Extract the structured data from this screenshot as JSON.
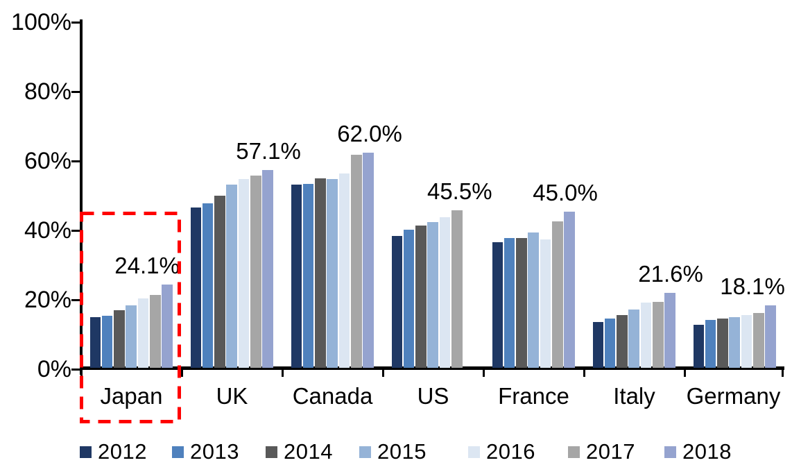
{
  "chart_data": {
    "type": "bar",
    "title": "",
    "xlabel": "",
    "ylabel": "",
    "ylim": [
      0,
      100
    ],
    "y_tick_labels": [
      "0%",
      "20%",
      "40%",
      "60%",
      "80%",
      "100%"
    ],
    "grid": false,
    "legend_position": "bottom",
    "series_years": [
      "2012",
      "2013",
      "2014",
      "2015",
      "2016",
      "2017",
      "2018"
    ],
    "series_colors": [
      "#1F3864",
      "#4F81BD",
      "#595959",
      "#95B3D7",
      "#DCE6F2",
      "#A6A6A6",
      "#95A3CF"
    ],
    "categories": [
      "Japan",
      "UK",
      "Canada",
      "US",
      "France",
      "Italy",
      "Germany"
    ],
    "groups": [
      {
        "country": "Japan",
        "values": [
          14.7,
          15.0,
          16.7,
          18.1,
          20.0,
          21.0,
          24.1
        ],
        "callout_label": "24.1%",
        "highlighted": true
      },
      {
        "country": "UK",
        "values": [
          46.2,
          47.5,
          49.7,
          52.9,
          54.5,
          55.5,
          57.1
        ],
        "callout_label": "57.1%",
        "highlighted": false
      },
      {
        "country": "Canada",
        "values": [
          52.8,
          53.1,
          54.6,
          54.5,
          56.0,
          61.4,
          62.0
        ],
        "callout_label": "62.0%",
        "highlighted": false
      },
      {
        "country": "US",
        "values": [
          38.0,
          39.8,
          41.0,
          42.0,
          43.4,
          45.5,
          null
        ],
        "callout_label": "45.5%",
        "highlighted": false
      },
      {
        "country": "France",
        "values": [
          36.3,
          37.5,
          37.5,
          39.0,
          37.0,
          42.2,
          45.0
        ],
        "callout_label": "45.0%",
        "highlighted": false
      },
      {
        "country": "Italy",
        "values": [
          13.3,
          14.2,
          15.3,
          16.8,
          18.9,
          19.1,
          21.6
        ],
        "callout_label": "21.6%",
        "highlighted": false
      },
      {
        "country": "Germany",
        "values": [
          12.5,
          13.9,
          14.3,
          14.7,
          15.3,
          15.8,
          18.1
        ],
        "callout_label": "18.1%",
        "highlighted": false
      }
    ],
    "annotation": {
      "type": "dashed-rectangle",
      "target": "Japan",
      "color": "#FF0000"
    }
  },
  "legend": {
    "items": [
      {
        "label": "2012",
        "color": "#1F3864"
      },
      {
        "label": "2013",
        "color": "#4F81BD"
      },
      {
        "label": "2014",
        "color": "#595959"
      },
      {
        "label": "2015",
        "color": "#95B3D7"
      },
      {
        "label": "2016",
        "color": "#DCE6F2"
      },
      {
        "label": "2017",
        "color": "#A6A6A6"
      },
      {
        "label": "2018",
        "color": "#95A3CF"
      }
    ]
  }
}
